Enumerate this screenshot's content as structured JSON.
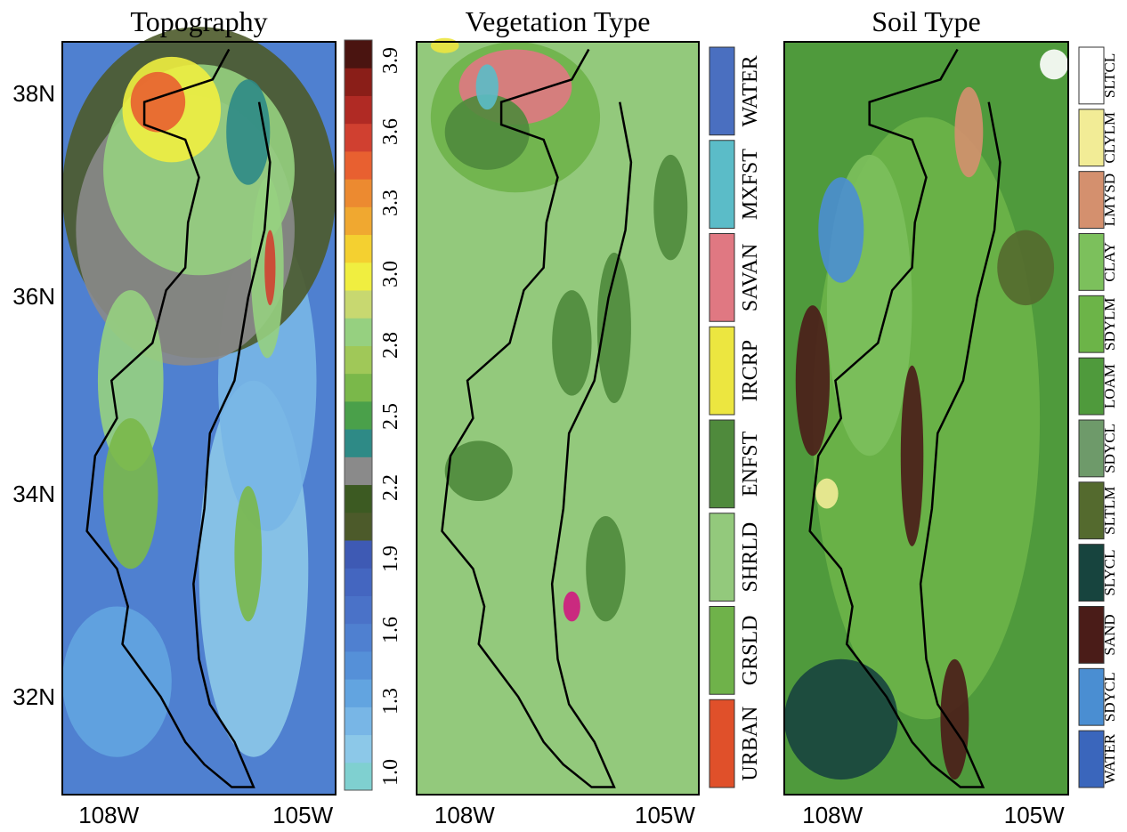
{
  "panels": [
    {
      "title": "Topography",
      "colorbar_labels": [
        "1.0",
        "1.3",
        "1.6",
        "1.9",
        "2.2",
        "2.5",
        "2.8",
        "3.0",
        "3.3",
        "3.6",
        "3.9"
      ],
      "colorbar_colors": [
        "#7fd0d0",
        "#8cc8e8",
        "#78b6e6",
        "#62a4e0",
        "#5590d8",
        "#4f80d0",
        "#4a72c8",
        "#4466c0",
        "#3e5ab4",
        "#4c5a2a",
        "#3c5a22",
        "#8a8a8a",
        "#2e8a86",
        "#4aa04a",
        "#7ab84a",
        "#a0c858",
        "#96d080",
        "#c8d870",
        "#f0ee40",
        "#f4d030",
        "#f0a830",
        "#ec8a30",
        "#e86030",
        "#d04030",
        "#b02a24",
        "#8a1e18",
        "#4a1410"
      ]
    },
    {
      "title": "Vegetation Type",
      "classes": [
        {
          "label": "WATER",
          "color": "#4a6fc0"
        },
        {
          "label": "MXFST",
          "color": "#5bbcc8"
        },
        {
          "label": "SAVAN",
          "color": "#e07882"
        },
        {
          "label": "IRCRP",
          "color": "#ece640"
        },
        {
          "label": "ENFST",
          "color": "#4f8a3c"
        },
        {
          "label": "SHRLD",
          "color": "#93c97c"
        },
        {
          "label": "GRSLD",
          "color": "#6fb24a"
        },
        {
          "label": "URBAN",
          "color": "#e0502a"
        }
      ]
    },
    {
      "title": "Soil Type",
      "classes": [
        {
          "label": "SLTCL",
          "color": "#ffffff"
        },
        {
          "label": "CLYLM",
          "color": "#f2ec96"
        },
        {
          "label": "LMYSD",
          "color": "#d4906e"
        },
        {
          "label": "CLAY",
          "color": "#7cc05c"
        },
        {
          "label": "SDYLM",
          "color": "#6cb448"
        },
        {
          "label": "LOAM",
          "color": "#4f9a3c"
        },
        {
          "label": "SDYCL",
          "color": "#6e9a6a"
        },
        {
          "label": "SLTLM",
          "color": "#546a2e"
        },
        {
          "label": "SLYCL",
          "color": "#17443e"
        },
        {
          "label": "SAND",
          "color": "#4a1c18"
        },
        {
          "label": "SDYCL",
          "color": "#4a8ed2"
        },
        {
          "label": "WATER",
          "color": "#3a66bc"
        }
      ]
    }
  ],
  "latitude_labels": [
    "38N",
    "36N",
    "34N",
    "32N"
  ],
  "longitude_labels": [
    "108W",
    "105W"
  ]
}
